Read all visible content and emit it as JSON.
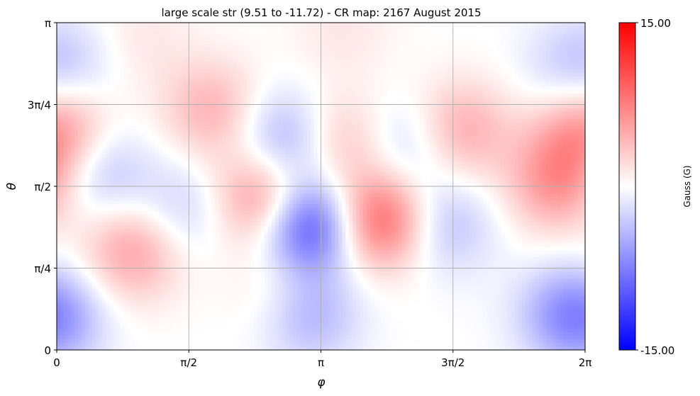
{
  "chart_data": {
    "type": "heatmap",
    "title": "large scale str (9.51 to -11.72) - CR map: 2167 August 2015",
    "xlabel": "φ",
    "ylabel": "θ",
    "x_range": [
      0,
      6.2832
    ],
    "y_range": [
      0,
      3.1416
    ],
    "x_ticks": [
      {
        "value": 0,
        "label": "0"
      },
      {
        "value": 1.5708,
        "label": "π/2"
      },
      {
        "value": 3.1416,
        "label": "π"
      },
      {
        "value": 4.7124,
        "label": "3π/2"
      },
      {
        "value": 6.2832,
        "label": "2π"
      }
    ],
    "y_ticks": [
      {
        "value": 0,
        "label": "0"
      },
      {
        "value": 0.7854,
        "label": "π/4"
      },
      {
        "value": 1.5708,
        "label": "π/2"
      },
      {
        "value": 2.3562,
        "label": "3π/4"
      },
      {
        "value": 3.1416,
        "label": "π"
      }
    ],
    "grid": true,
    "colormap": "bwr",
    "colors": {
      "low": "#0000ff",
      "mid": "#ffffff",
      "high": "#ff0000"
    },
    "colorbar": {
      "min": -15.0,
      "max": 15.0,
      "min_label": "-15.00",
      "max_label": "15.00",
      "label": "Gauss (G)"
    },
    "data_range": {
      "max": 9.51,
      "min": -11.72
    },
    "features": [
      {
        "phi": 2.98,
        "theta": 1.2,
        "value": -11.7
      },
      {
        "phi": 2.7,
        "theta": 2.0,
        "value": -5.5
      },
      {
        "phi": 2.48,
        "theta": 1.45,
        "value": 8.2
      },
      {
        "phi": 1.85,
        "theta": 2.3,
        "value": 4.5
      },
      {
        "phi": 3.85,
        "theta": 1.25,
        "value": 9.5
      },
      {
        "phi": 3.4,
        "theta": 2.0,
        "value": 4.0
      },
      {
        "phi": 0.9,
        "theta": 0.95,
        "value": 5.5
      },
      {
        "phi": 0.5,
        "theta": 1.7,
        "value": -4.0
      },
      {
        "phi": 1.5,
        "theta": 1.35,
        "value": -3.0
      },
      {
        "phi": 4.15,
        "theta": 1.95,
        "value": -3.5
      },
      {
        "phi": 4.8,
        "theta": 2.1,
        "value": 5.0
      },
      {
        "phi": 4.6,
        "theta": 1.2,
        "value": -4.0
      },
      {
        "phi": 5.95,
        "theta": 1.6,
        "value": 6.0
      },
      {
        "phi": 6.2,
        "theta": 2.1,
        "value": 3.0
      },
      {
        "phi": 0.1,
        "theta": 2.1,
        "value": 3.5
      },
      {
        "phi": 0.0,
        "theta": 0.3,
        "value": -2.5
      },
      {
        "phi": 6.25,
        "theta": 0.3,
        "value": -2.5
      },
      {
        "phi": 3.0,
        "theta": 0.35,
        "value": -5.0
      },
      {
        "phi": 2.7,
        "theta": 0.6,
        "value": 2.5
      },
      {
        "phi": 6.0,
        "theta": 0.35,
        "value": -3.0
      },
      {
        "phi": 6.1,
        "theta": 2.7,
        "value": -2.5
      },
      {
        "phi": 0.2,
        "theta": 2.75,
        "value": -2.0
      },
      {
        "phi": 1.0,
        "theta": 3.0,
        "value": 1.5
      },
      {
        "phi": 3.4,
        "theta": 3.1,
        "value": 1.5
      }
    ]
  }
}
